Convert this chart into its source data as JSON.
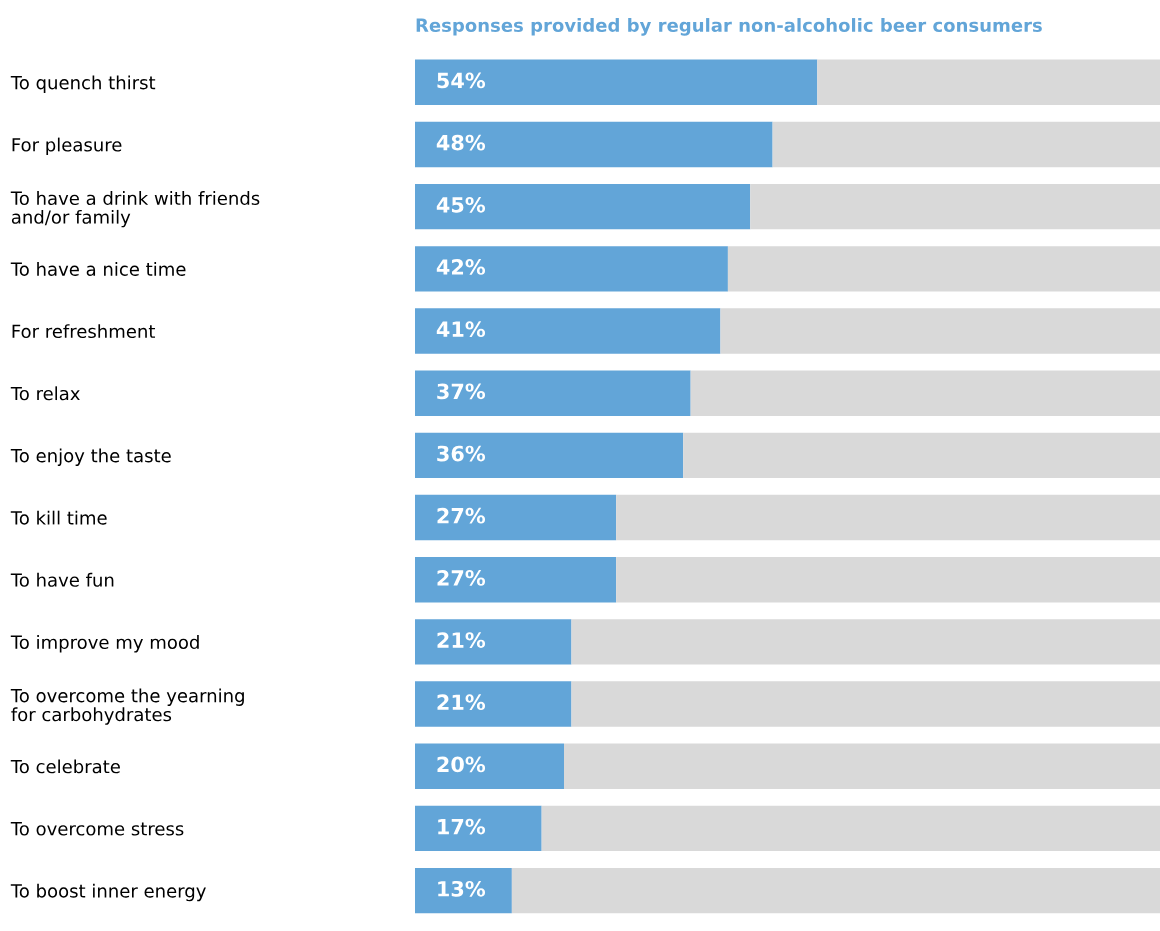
{
  "chart_data": {
    "type": "bar",
    "orientation": "horizontal",
    "stacked": true,
    "title": "Responses provided by regular non-alcoholic beer consumers",
    "categories": [
      "To quench thirst",
      "For pleasure",
      "To have a drink with friends\nand/or family",
      "To have a nice time",
      "For refreshment",
      "To relax",
      "To enjoy the taste",
      "To kill time",
      "To have fun",
      "To improve my mood",
      "To overcome the yearning\nfor carbohydrates",
      "To celebrate",
      "To overcome stress",
      "To boost inner energy"
    ],
    "series": [
      {
        "color": "#62a5d8",
        "values": [
          54,
          48,
          45,
          42,
          41,
          37,
          36,
          27,
          27,
          21,
          21,
          20,
          17,
          13
        ],
        "value_labels": [
          "54%",
          "48%",
          "45%",
          "42%",
          "41%",
          "37%",
          "36%",
          "27%",
          "27%",
          "21%",
          "21%",
          "20%",
          "17%",
          "13%"
        ]
      },
      {
        "color": "#d9d9d9",
        "values": [
          46,
          52,
          55,
          58,
          59,
          63,
          64,
          73,
          73,
          79,
          79,
          80,
          83,
          87
        ]
      }
    ],
    "xlim": [
      0,
      100
    ],
    "tick_labels": "y",
    "grid": false,
    "legend": false
  }
}
